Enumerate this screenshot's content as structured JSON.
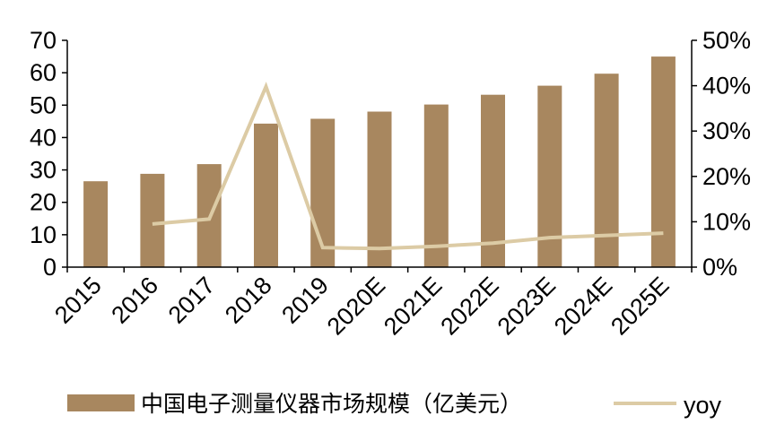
{
  "chart_data": {
    "type": "bar",
    "categories": [
      "2015",
      "2016",
      "2017",
      "2018",
      "2019",
      "2020E",
      "2021E",
      "2022E",
      "2023E",
      "2024E",
      "2025E"
    ],
    "series": [
      {
        "name": "中国电子测量仪器市场规模（亿美元）",
        "type": "bar",
        "axis": "left",
        "values": [
          26.5,
          28.8,
          31.8,
          44.3,
          45.8,
          48.0,
          50.2,
          53.2,
          56.0,
          59.7,
          65.0
        ]
      },
      {
        "name": "yoy",
        "type": "line",
        "axis": "right",
        "values": [
          null,
          9.5,
          10.6,
          39.8,
          4.3,
          4.1,
          4.6,
          5.3,
          6.5,
          7.0,
          7.5
        ]
      }
    ],
    "ylim_left": [
      0,
      70
    ],
    "yticks_left": [
      "0",
      "10",
      "20",
      "30",
      "40",
      "50",
      "60",
      "70"
    ],
    "ylim_right": [
      0,
      50
    ],
    "yticks_right": [
      "0%",
      "10%",
      "20%",
      "30%",
      "40%",
      "50%"
    ],
    "grid": false,
    "legend_position": "bottom",
    "colors": {
      "bar": "#A8875F",
      "line": "#DCCBA5",
      "axis": "#000000"
    }
  }
}
